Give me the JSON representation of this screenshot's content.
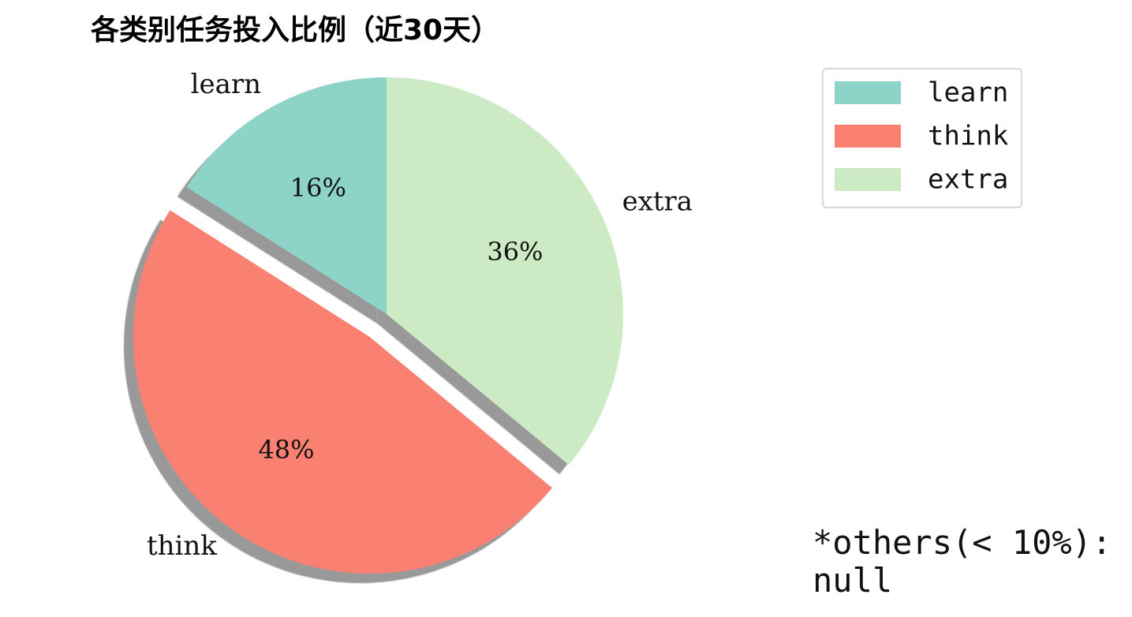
{
  "chart_data": {
    "type": "pie",
    "title": "各类别任务投入比例（近30天）",
    "categories": [
      "learn",
      "think",
      "extra"
    ],
    "values": [
      16,
      48,
      36
    ],
    "percent_labels": [
      "16%",
      "48%",
      "36%"
    ],
    "colors": [
      "#8ED3C7",
      "#FA8072",
      "#CCEBC5"
    ],
    "explode": [
      "none",
      "think",
      "none"
    ],
    "shadow": true,
    "start": "top, counterclockwise",
    "legend": {
      "placement": "top-right",
      "entries": [
        "learn",
        "think",
        "extra"
      ]
    },
    "note": "*others(< 10%):\nnull"
  }
}
